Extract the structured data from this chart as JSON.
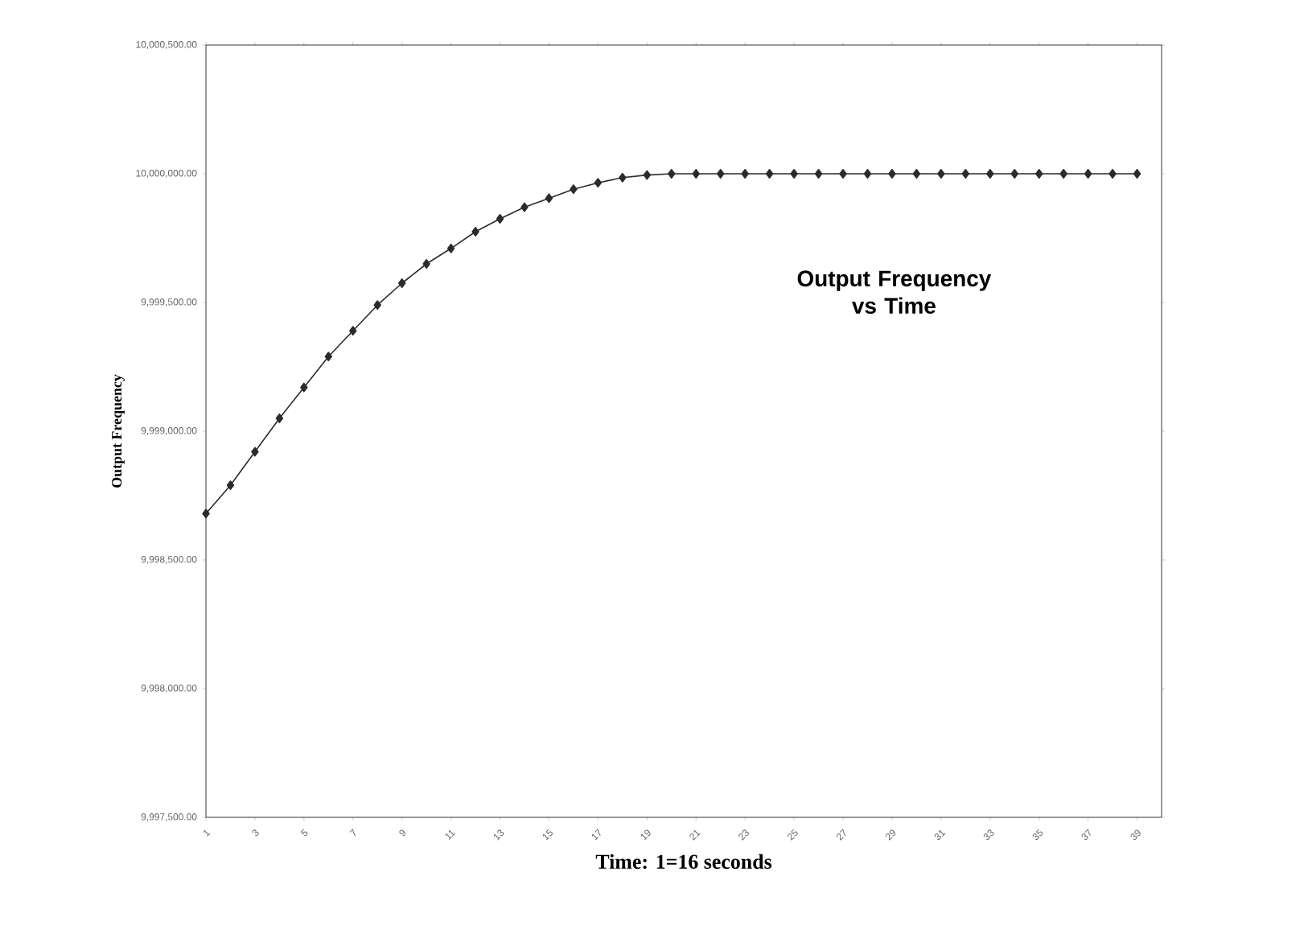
{
  "chart_data": {
    "type": "line",
    "title": "Output Frequency vs Time",
    "xlabel": "Time: 1=16 seconds",
    "ylabel": "Output Frequency",
    "categories": [
      "1",
      null,
      "3",
      null,
      "5",
      null,
      "7",
      null,
      "9",
      null,
      "11",
      null,
      "13",
      null,
      "15",
      null,
      "17",
      null,
      "19",
      null,
      "21",
      null,
      "23",
      null,
      "25",
      null,
      "27",
      null,
      "29",
      null,
      "31",
      null,
      "33",
      null,
      "35",
      null,
      "37",
      null,
      "39"
    ],
    "series": [
      {
        "color": "#2b2b2b",
        "values": [
          9998680,
          9998790,
          9998920,
          9999050,
          9999170,
          9999290,
          9999390,
          9999490,
          9999575,
          9999650,
          9999710,
          9999775,
          9999825,
          9999870,
          9999905,
          9999940,
          9999965,
          9999985,
          9999995,
          10000000,
          10000000,
          10000000,
          10000000,
          10000000,
          10000000,
          10000000,
          10000000,
          10000000,
          10000000,
          10000000,
          10000000,
          10000000,
          10000000,
          10000000,
          10000000,
          10000000,
          10000000,
          10000000,
          10000000
        ]
      }
    ],
    "ylim": [
      9997500,
      10000500
    ],
    "yticks": [
      {
        "value": 9997500,
        "label": "9,997,500.00"
      },
      {
        "value": 9998000,
        "label": "9,998,000.00"
      },
      {
        "value": 9998500,
        "label": "9,998,500.00"
      },
      {
        "value": 9999000,
        "label": "9,999,000.00"
      },
      {
        "value": 9999500,
        "label": "9,999,500.00"
      },
      {
        "value": 10000000,
        "label": "10,000,000.00"
      },
      {
        "value": 10000500,
        "label": "10,000,500.00"
      }
    ],
    "grid": false,
    "marker": "diamond",
    "line_style": "solid"
  }
}
